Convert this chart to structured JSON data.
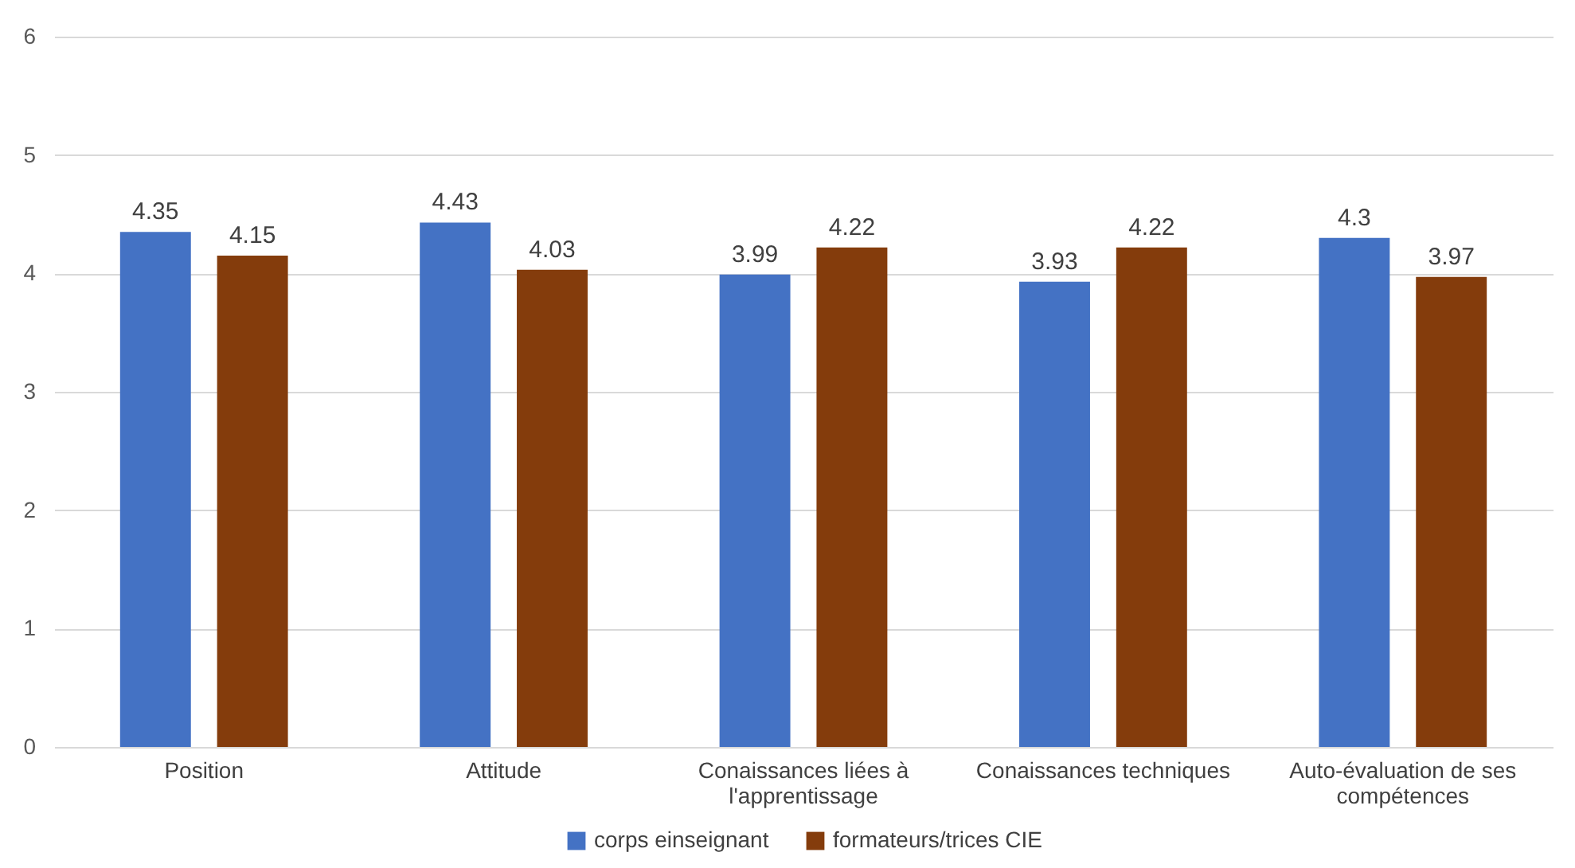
{
  "chart_data": {
    "type": "bar",
    "categories": [
      "Position",
      "Attitude",
      "Conaissances liées à l'apprentissage",
      "Conaissances techniques",
      "Auto-évaluation de ses compétences"
    ],
    "series": [
      {
        "name": "corps einseignant",
        "color": "#4472c4",
        "values": [
          4.35,
          4.43,
          3.99,
          3.93,
          4.3
        ]
      },
      {
        "name": "formateurs/trices CIE",
        "color": "#843c0c",
        "values": [
          4.15,
          4.03,
          4.22,
          4.22,
          3.97
        ]
      }
    ],
    "ylim": [
      0,
      6
    ],
    "yticks": [
      0,
      1,
      2,
      3,
      4,
      5,
      6
    ],
    "grid": "y",
    "legend": "bottom",
    "data_labels": true
  }
}
